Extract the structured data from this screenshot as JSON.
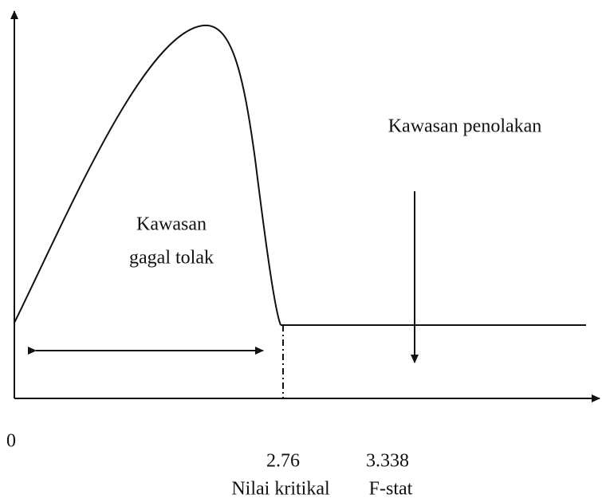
{
  "labels": {
    "rejection_region": "Kawasan penolakan",
    "fail_region": [
      "Kawasan",
      "gagal tolak"
    ],
    "origin": "0",
    "critical_value": "2.76",
    "f_stat": "3.338",
    "critical_label": "Nilai kritikal",
    "f_stat_label": "F-stat"
  }
}
